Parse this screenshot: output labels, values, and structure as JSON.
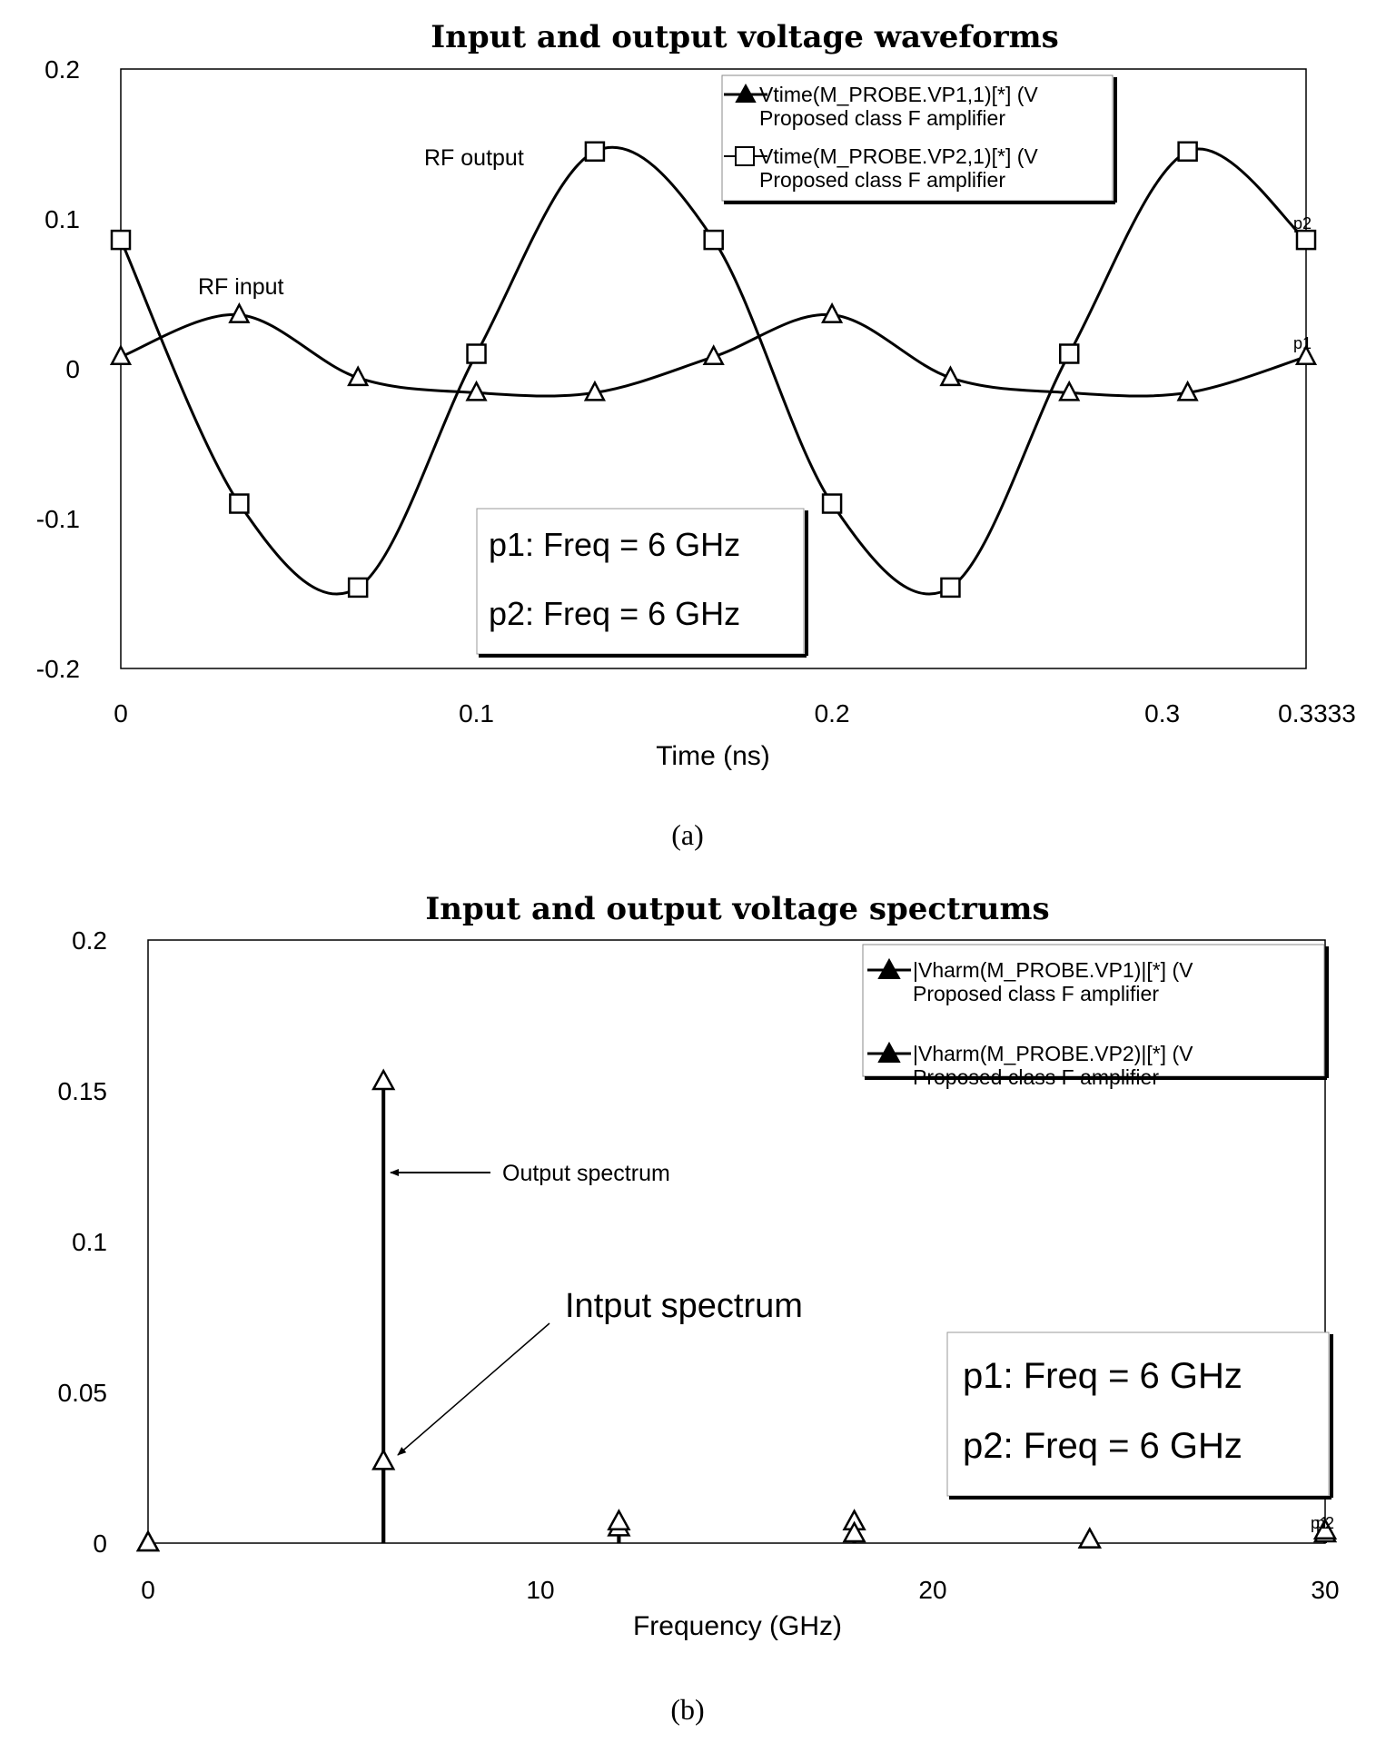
{
  "chart_data": [
    {
      "type": "line",
      "title": "Input and output voltage waveforms",
      "xlabel": "Time (ns)",
      "ylabel": "",
      "xlim": [
        0,
        0.3333
      ],
      "ylim": [
        -0.2,
        0.2
      ],
      "x_ticks": [
        "0",
        "0.1",
        "0.2",
        "0.3",
        "0.3333"
      ],
      "y_ticks": [
        "0.2",
        "0.1",
        "0",
        "-0.1",
        "-0.2"
      ],
      "caption": "(a)",
      "legend_position": "top-right",
      "series": [
        {
          "name": "Vtime(M_PROBE.VP1,1)[*] (V",
          "name2": "Proposed class F  amplifier",
          "marker": "triangle",
          "end_tag": "p1",
          "x": [
            0,
            0.0333,
            0.0667,
            0.1,
            0.1333,
            0.1667,
            0.2,
            0.2333,
            0.2667,
            0.3,
            0.3333
          ],
          "values": [
            0.008,
            0.036,
            -0.006,
            -0.016,
            -0.016,
            0.008,
            0.036,
            -0.006,
            -0.016,
            -0.016,
            0.008
          ]
        },
        {
          "name": "Vtime(M_PROBE.VP2,1)[*] (V",
          "name2": "Proposed class F  amplifier",
          "marker": "square",
          "end_tag": "p2",
          "x": [
            0,
            0.0333,
            0.0667,
            0.1,
            0.1333,
            0.1667,
            0.2,
            0.2333,
            0.2667,
            0.3,
            0.3333
          ],
          "values": [
            0.086,
            -0.09,
            -0.146,
            0.01,
            0.145,
            0.086,
            -0.09,
            -0.146,
            0.01,
            0.145,
            0.086
          ]
        }
      ],
      "annotations": [
        {
          "text": "RF output"
        },
        {
          "text": "RF input"
        }
      ],
      "marker_box": [
        "p1: Freq = 6 GHz",
        "p2: Freq = 6 GHz"
      ]
    },
    {
      "type": "line",
      "title": "Input and output voltage spectrums",
      "xlabel": "Frequency (GHz)",
      "ylabel": "",
      "xlim": [
        0,
        30
      ],
      "ylim": [
        0,
        0.2
      ],
      "x_ticks": [
        "0",
        "10",
        "20",
        "30"
      ],
      "y_ticks": [
        "0.2",
        "0.15",
        "0.1",
        "0.05",
        "0"
      ],
      "caption": "(b)",
      "legend_position": "top-right",
      "series": [
        {
          "name": "|Vharm(M_PROBE.VP1)|[*] (V",
          "name2": "Proposed class F  amplifier",
          "marker": "triangle",
          "end_tag": "p1",
          "x": [
            0,
            6,
            12,
            18,
            24,
            30
          ],
          "values": [
            0,
            0.027,
            0.005,
            0.007,
            0.001,
            0.003
          ]
        },
        {
          "name": "|Vharm(M_PROBE.VP2)|[*] (V",
          "name2": "Proposed class F  amplifier",
          "marker": "triangle",
          "end_tag": "p2",
          "x": [
            0,
            6,
            12,
            18,
            24,
            30
          ],
          "values": [
            0,
            0.153,
            0.007,
            0.003,
            0.001,
            0.004
          ]
        }
      ],
      "annotations": [
        {
          "text": "Output spectrum"
        },
        {
          "text": "Intput spectrum"
        }
      ],
      "marker_box": [
        "p1: Freq = 6 GHz",
        "p2: Freq = 6 GHz"
      ]
    }
  ]
}
